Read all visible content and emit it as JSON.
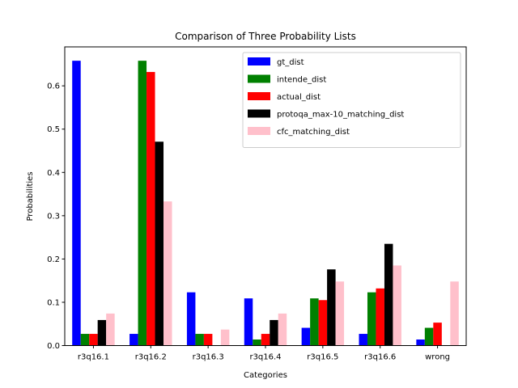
{
  "chart_data": {
    "type": "bar",
    "title": "Comparison of Three Probability Lists",
    "xlabel": "Categories",
    "ylabel": "Probabilities",
    "ylim": [
      0,
      0.69
    ],
    "yticks": [
      0.0,
      0.1,
      0.2,
      0.3,
      0.4,
      0.5,
      0.6
    ],
    "ytick_labels": [
      "0.0",
      "0.1",
      "0.2",
      "0.3",
      "0.4",
      "0.5",
      "0.6"
    ],
    "categories": [
      "r3q16.1",
      "r3q16.2",
      "r3q16.3",
      "r3q16.4",
      "r3q16.5",
      "r3q16.6",
      "wrong"
    ],
    "legend_position": "top-right",
    "grid": false,
    "series": [
      {
        "name": "gt_dist",
        "color": "#0000ff",
        "values": [
          0.658,
          0.027,
          0.123,
          0.109,
          0.041,
          0.027,
          0.014
        ]
      },
      {
        "name": "intende_dist",
        "color": "#008000",
        "values": [
          0.027,
          0.658,
          0.027,
          0.014,
          0.109,
          0.123,
          0.041
        ]
      },
      {
        "name": "actual_dist",
        "color": "#ff0000",
        "values": [
          0.027,
          0.632,
          0.027,
          0.027,
          0.105,
          0.132,
          0.053
        ]
      },
      {
        "name": "protoqa_max-10_matching_dist",
        "color": "#000000",
        "values": [
          0.059,
          0.471,
          0.0,
          0.059,
          0.176,
          0.235,
          0.0
        ]
      },
      {
        "name": "cfc_matching_dist",
        "color": "#ffc0cb",
        "values": [
          0.074,
          0.333,
          0.037,
          0.074,
          0.148,
          0.185,
          0.148
        ]
      }
    ]
  }
}
